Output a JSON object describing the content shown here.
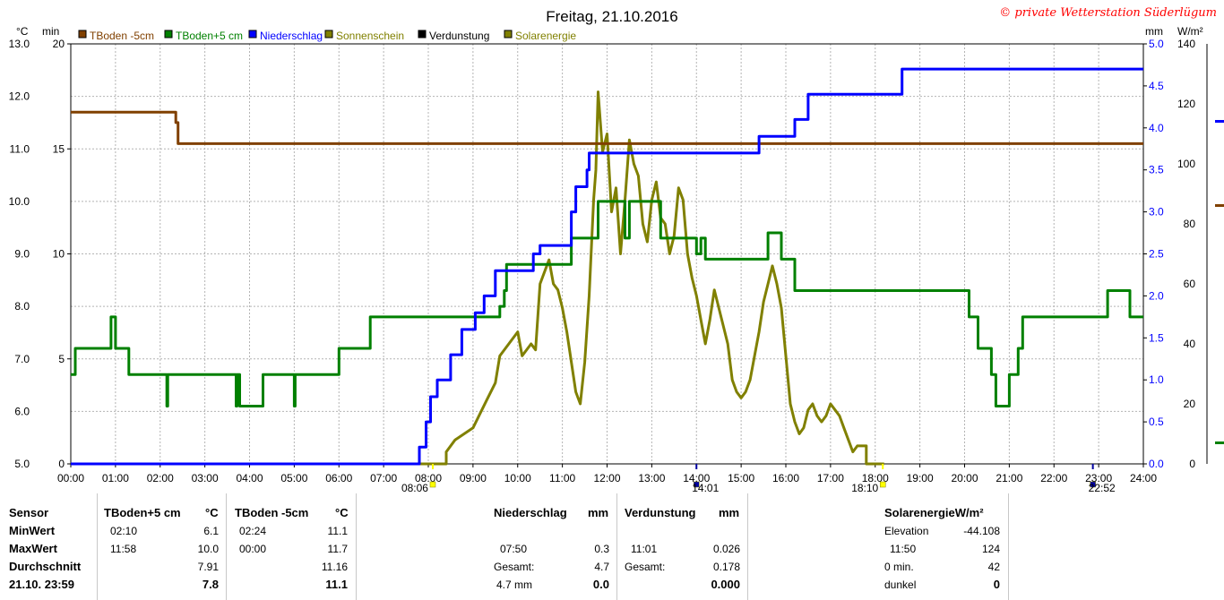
{
  "title": "Freitag, 21.10.2016",
  "copyright": "© private Wetterstation Süderlügum",
  "unit_labels": {
    "celsius": "°C",
    "min": "min",
    "mm": "mm",
    "wm2": "W/m²"
  },
  "axes": {
    "celsius_ticks": [
      "5.0",
      "6.0",
      "7.0",
      "8.0",
      "9.0",
      "10.0",
      "11.0",
      "12.0",
      "13.0"
    ],
    "min_ticks": [
      "0",
      "5",
      "10",
      "15",
      "20"
    ],
    "mm_ticks": [
      "0.0",
      "0.5",
      "1.0",
      "1.5",
      "2.0",
      "2.5",
      "3.0",
      "3.5",
      "4.0",
      "4.5",
      "5.0"
    ],
    "wm2_ticks": [
      "0",
      "20",
      "40",
      "60",
      "80",
      "100",
      "120",
      "140"
    ],
    "time_ticks": [
      "00:00",
      "01:00",
      "02:00",
      "03:00",
      "04:00",
      "05:00",
      "06:00",
      "07:00",
      "08:00",
      "09:00",
      "10:00",
      "11:00",
      "12:00",
      "13:00",
      "14:00",
      "15:00",
      "16:00",
      "17:00",
      "18:00",
      "19:00",
      "20:00",
      "21:00",
      "22:00",
      "23:00",
      "24:00"
    ]
  },
  "markers": [
    {
      "label": "08:06",
      "hour": 8.1,
      "color": "#ffff00"
    },
    {
      "label": "14:01",
      "hour": 14.0,
      "color": "#0000a0"
    },
    {
      "label": "18:10",
      "hour": 18.17,
      "color": "#ffff00"
    },
    {
      "label": "22:52",
      "hour": 22.87,
      "color": "#0000a0"
    }
  ],
  "colors": {
    "tboden_m5": "#804000",
    "tboden_p5": "#008000",
    "niederschlag": "#0000ff",
    "sonnenschein": "#808000",
    "verdunstung": "#000000",
    "solarenergie": "#808000",
    "grid": "#b4b4b4"
  },
  "legend": [
    {
      "label": "TBoden -5cm",
      "color": "#804000"
    },
    {
      "label": "TBoden+5 cm",
      "color": "#008000"
    },
    {
      "label": "Niederschlag",
      "color": "#0000ff"
    },
    {
      "label": "Sonnenschein",
      "color": "#808000"
    },
    {
      "label": "Verdunstung",
      "color": "#000000"
    },
    {
      "label": "Solarenergie",
      "color": "#808000"
    }
  ],
  "chart_data": {
    "type": "line",
    "title": "Freitag, 21.10.2016",
    "x_range_hours": [
      0,
      24
    ],
    "ylim": {
      "celsius": [
        5.0,
        13.0
      ],
      "min": [
        0,
        20
      ],
      "mm": [
        0.0,
        5.0
      ],
      "wm2": [
        0,
        140
      ]
    },
    "grid": true,
    "series": [
      {
        "name": "TBoden -5cm",
        "axis": "celsius",
        "points": [
          [
            0,
            11.7
          ],
          [
            2.35,
            11.7
          ],
          [
            2.35,
            11.5
          ],
          [
            2.4,
            11.5
          ],
          [
            2.4,
            11.1
          ],
          [
            24,
            11.1
          ]
        ]
      },
      {
        "name": "TBoden+5 cm",
        "axis": "celsius",
        "points": [
          [
            0,
            6.7
          ],
          [
            0.1,
            6.7
          ],
          [
            0.1,
            7.2
          ],
          [
            0.9,
            7.2
          ],
          [
            0.9,
            7.8
          ],
          [
            1.0,
            7.8
          ],
          [
            1.0,
            7.2
          ],
          [
            1.3,
            7.2
          ],
          [
            1.3,
            6.7
          ],
          [
            2.15,
            6.7
          ],
          [
            2.15,
            6.1
          ],
          [
            2.17,
            6.1
          ],
          [
            2.17,
            6.7
          ],
          [
            3.7,
            6.7
          ],
          [
            3.7,
            6.1
          ],
          [
            3.72,
            6.1
          ],
          [
            3.72,
            6.7
          ],
          [
            3.78,
            6.7
          ],
          [
            3.78,
            6.1
          ],
          [
            4.3,
            6.1
          ],
          [
            4.3,
            6.7
          ],
          [
            5.0,
            6.7
          ],
          [
            5.0,
            6.1
          ],
          [
            5.02,
            6.1
          ],
          [
            5.02,
            6.7
          ],
          [
            6.0,
            6.7
          ],
          [
            6.0,
            7.2
          ],
          [
            6.7,
            7.2
          ],
          [
            6.7,
            7.8
          ],
          [
            9.6,
            7.8
          ],
          [
            9.6,
            8.0
          ],
          [
            9.7,
            8.0
          ],
          [
            9.7,
            8.3
          ],
          [
            9.75,
            8.3
          ],
          [
            9.75,
            8.8
          ],
          [
            11.2,
            8.8
          ],
          [
            11.2,
            9.3
          ],
          [
            11.8,
            9.3
          ],
          [
            11.8,
            10.0
          ],
          [
            12.4,
            10.0
          ],
          [
            12.4,
            9.3
          ],
          [
            12.5,
            9.3
          ],
          [
            12.5,
            10.0
          ],
          [
            13.2,
            10.0
          ],
          [
            13.2,
            9.3
          ],
          [
            14.0,
            9.3
          ],
          [
            14.0,
            9.0
          ],
          [
            14.1,
            9.0
          ],
          [
            14.1,
            9.3
          ],
          [
            14.2,
            9.3
          ],
          [
            14.2,
            8.9
          ],
          [
            15.6,
            8.9
          ],
          [
            15.6,
            9.4
          ],
          [
            15.9,
            9.4
          ],
          [
            15.9,
            8.9
          ],
          [
            16.2,
            8.9
          ],
          [
            16.2,
            8.3
          ],
          [
            20.1,
            8.3
          ],
          [
            20.1,
            7.8
          ],
          [
            20.3,
            7.8
          ],
          [
            20.3,
            7.2
          ],
          [
            20.6,
            7.2
          ],
          [
            20.6,
            6.7
          ],
          [
            20.7,
            6.7
          ],
          [
            20.7,
            6.1
          ],
          [
            21.0,
            6.1
          ],
          [
            21.0,
            6.7
          ],
          [
            21.2,
            6.7
          ],
          [
            21.2,
            7.2
          ],
          [
            21.3,
            7.2
          ],
          [
            21.3,
            7.8
          ],
          [
            23.2,
            7.8
          ],
          [
            23.2,
            8.3
          ],
          [
            23.7,
            8.3
          ],
          [
            23.7,
            7.8
          ],
          [
            24,
            7.8
          ]
        ]
      },
      {
        "name": "Niederschlag",
        "axis": "mm",
        "points": [
          [
            0,
            0
          ],
          [
            7.8,
            0
          ],
          [
            7.8,
            0.2
          ],
          [
            7.95,
            0.2
          ],
          [
            7.95,
            0.5
          ],
          [
            8.05,
            0.5
          ],
          [
            8.05,
            0.8
          ],
          [
            8.2,
            0.8
          ],
          [
            8.2,
            1.0
          ],
          [
            8.5,
            1.0
          ],
          [
            8.5,
            1.3
          ],
          [
            8.75,
            1.3
          ],
          [
            8.75,
            1.6
          ],
          [
            9.05,
            1.6
          ],
          [
            9.05,
            1.8
          ],
          [
            9.25,
            1.8
          ],
          [
            9.25,
            2.0
          ],
          [
            9.5,
            2.0
          ],
          [
            9.5,
            2.3
          ],
          [
            10.35,
            2.3
          ],
          [
            10.35,
            2.5
          ],
          [
            10.5,
            2.5
          ],
          [
            10.5,
            2.6
          ],
          [
            11.2,
            2.6
          ],
          [
            11.2,
            3.0
          ],
          [
            11.3,
            3.0
          ],
          [
            11.3,
            3.3
          ],
          [
            11.55,
            3.3
          ],
          [
            11.55,
            3.5
          ],
          [
            11.6,
            3.5
          ],
          [
            11.6,
            3.7
          ],
          [
            15.4,
            3.7
          ],
          [
            15.4,
            3.9
          ],
          [
            16.2,
            3.9
          ],
          [
            16.2,
            4.1
          ],
          [
            16.5,
            4.1
          ],
          [
            16.5,
            4.4
          ],
          [
            18.6,
            4.4
          ],
          [
            18.6,
            4.7
          ],
          [
            24,
            4.7
          ]
        ]
      },
      {
        "name": "Solarenergie",
        "axis": "wm2",
        "points": [
          [
            7.8,
            0
          ],
          [
            8.4,
            0
          ],
          [
            8.4,
            4
          ],
          [
            8.6,
            8
          ],
          [
            9.0,
            12
          ],
          [
            9.3,
            21
          ],
          [
            9.5,
            27
          ],
          [
            9.6,
            36
          ],
          [
            9.8,
            40
          ],
          [
            10.0,
            44
          ],
          [
            10.1,
            36
          ],
          [
            10.3,
            40
          ],
          [
            10.4,
            38
          ],
          [
            10.5,
            60
          ],
          [
            10.7,
            68
          ],
          [
            10.8,
            60
          ],
          [
            10.9,
            58
          ],
          [
            11.0,
            52
          ],
          [
            11.1,
            44
          ],
          [
            11.2,
            34
          ],
          [
            11.3,
            24
          ],
          [
            11.4,
            20
          ],
          [
            11.5,
            34
          ],
          [
            11.6,
            56
          ],
          [
            11.7,
            88
          ],
          [
            11.75,
            98
          ],
          [
            11.8,
            124
          ],
          [
            11.9,
            104
          ],
          [
            12.0,
            110
          ],
          [
            12.1,
            84
          ],
          [
            12.2,
            92
          ],
          [
            12.3,
            70
          ],
          [
            12.4,
            88
          ],
          [
            12.5,
            108
          ],
          [
            12.6,
            100
          ],
          [
            12.7,
            96
          ],
          [
            12.8,
            80
          ],
          [
            12.9,
            74
          ],
          [
            13.0,
            88
          ],
          [
            13.1,
            94
          ],
          [
            13.2,
            82
          ],
          [
            13.3,
            80
          ],
          [
            13.4,
            70
          ],
          [
            13.5,
            76
          ],
          [
            13.6,
            92
          ],
          [
            13.7,
            88
          ],
          [
            13.8,
            70
          ],
          [
            13.9,
            62
          ],
          [
            14.0,
            56
          ],
          [
            14.1,
            48
          ],
          [
            14.2,
            40
          ],
          [
            14.3,
            48
          ],
          [
            14.4,
            58
          ],
          [
            14.5,
            52
          ],
          [
            14.6,
            46
          ],
          [
            14.7,
            40
          ],
          [
            14.8,
            28
          ],
          [
            14.9,
            24
          ],
          [
            15.0,
            22
          ],
          [
            15.1,
            24
          ],
          [
            15.2,
            28
          ],
          [
            15.3,
            36
          ],
          [
            15.4,
            44
          ],
          [
            15.5,
            54
          ],
          [
            15.6,
            60
          ],
          [
            15.7,
            66
          ],
          [
            15.8,
            60
          ],
          [
            15.9,
            52
          ],
          [
            16.0,
            36
          ],
          [
            16.1,
            20
          ],
          [
            16.2,
            14
          ],
          [
            16.3,
            10
          ],
          [
            16.4,
            12
          ],
          [
            16.5,
            18
          ],
          [
            16.6,
            20
          ],
          [
            16.7,
            16
          ],
          [
            16.8,
            14
          ],
          [
            16.9,
            16
          ],
          [
            17.0,
            20
          ],
          [
            17.1,
            18
          ],
          [
            17.2,
            16
          ],
          [
            17.3,
            12
          ],
          [
            17.4,
            8
          ],
          [
            17.5,
            4
          ],
          [
            17.6,
            6
          ],
          [
            17.8,
            6
          ],
          [
            17.8,
            0
          ],
          [
            18.2,
            0
          ]
        ]
      }
    ]
  },
  "table": {
    "headers": {
      "sensor": "Sensor",
      "p5": "TBoden+5 cm",
      "p5_unit": "°C",
      "m5": "TBoden -5cm",
      "m5_unit": "°C",
      "rain": "Niederschlag",
      "rain_unit": "mm",
      "evap": "Verdunstung",
      "evap_unit": "mm",
      "solar": "SolarenergieW/m²"
    },
    "rows": [
      "MinWert",
      "MaxWert",
      "Durchschnitt",
      "21.10. 23:59"
    ],
    "p5": {
      "min_time": "02:10",
      "min": "6.1",
      "max_time": "11:58",
      "max": "10.0",
      "avg": "7.91",
      "last": "7.8"
    },
    "m5": {
      "min_time": "02:24",
      "min": "11.1",
      "max_time": "00:00",
      "max": "11.7",
      "avg": "11.16",
      "last": "11.1"
    },
    "rain": {
      "max_time": "07:50",
      "max": "0.3",
      "total_label": "Gesamt:",
      "total": "4.7",
      "last_label": "4.7 mm",
      "last": "0.0"
    },
    "evap": {
      "max_time": "11:01",
      "max": "0.026",
      "total_label": "Gesamt:",
      "total": "0.178",
      "last": "0.000"
    },
    "solar": {
      "elev_label": "Elevation",
      "elev": "-44.108",
      "max_time": "11:50",
      "max": "124",
      "zero_label": "0 min.",
      "zero": "42",
      "dark_label": "dunkel",
      "dark": "0"
    }
  }
}
